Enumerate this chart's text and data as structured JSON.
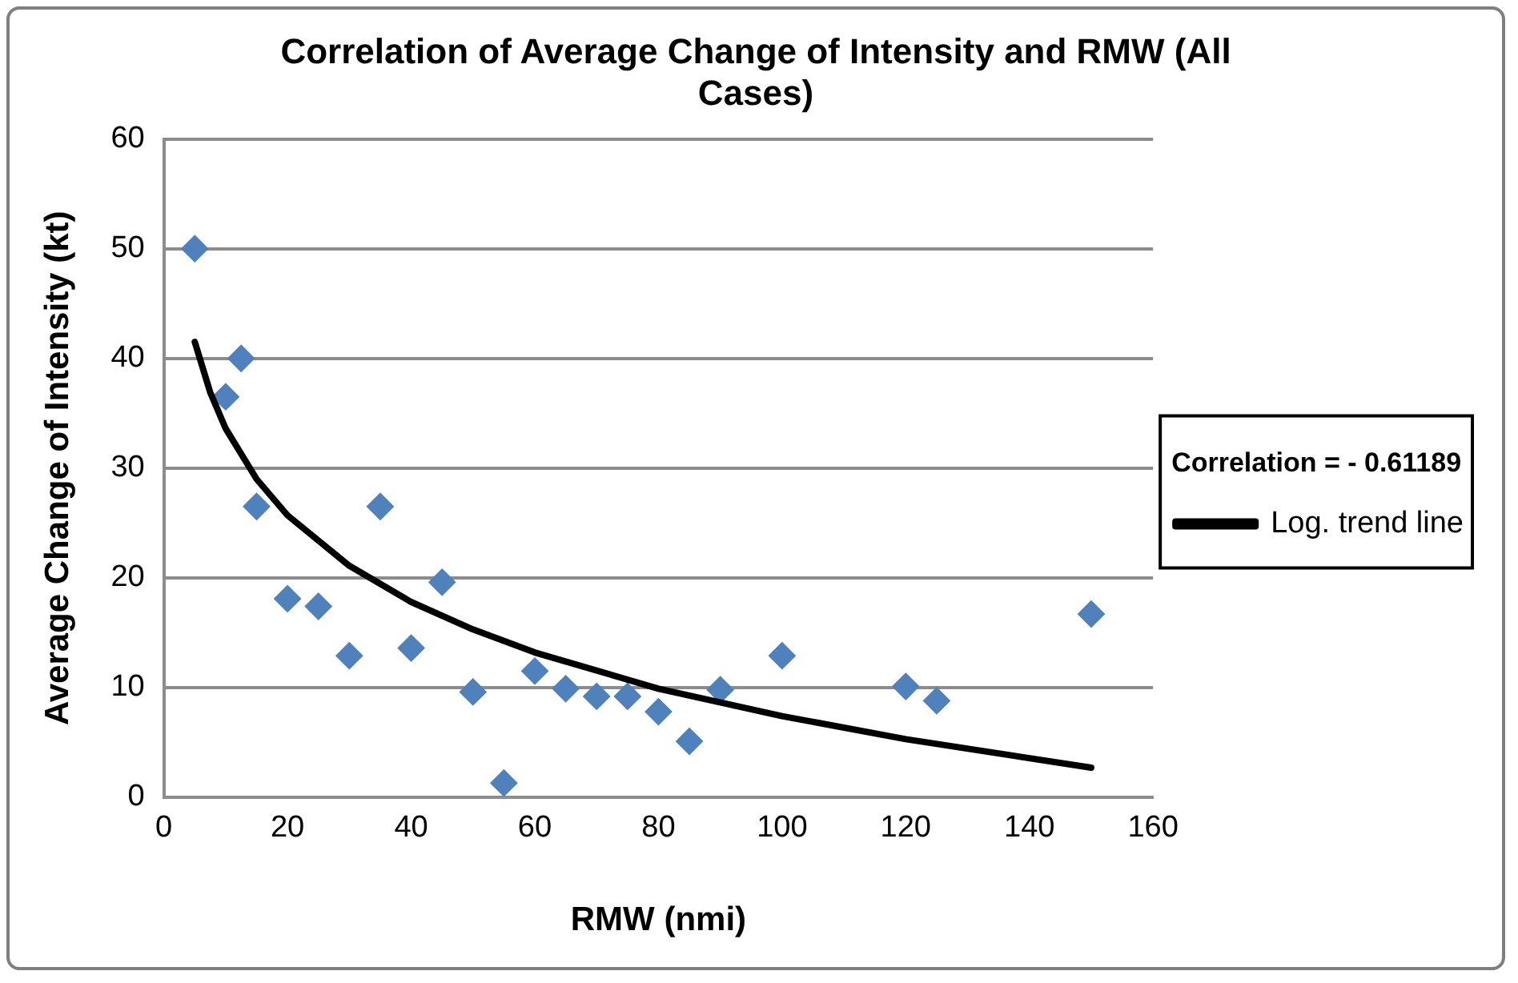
{
  "chart_data": {
    "type": "scatter",
    "title": "Correlation of Average Change of Intensity and RMW (All Cases)",
    "xlabel": "RMW (nmi)",
    "ylabel": "Average Change of Intensity (kt)",
    "legend_title": "Correlation = - 0.61189",
    "legend": "right",
    "grid": "y",
    "xlim": [
      0,
      160
    ],
    "xticks": [
      0,
      20,
      40,
      60,
      80,
      100,
      120,
      140,
      160
    ],
    "ylim": [
      0,
      60
    ],
    "yticks": [
      0,
      10,
      20,
      30,
      40,
      50,
      60
    ],
    "series": [
      {
        "color": "#4f81bd",
        "marker": "diamond",
        "x": [
          5,
          10,
          12.5,
          15,
          20,
          25,
          30,
          35,
          40,
          45,
          50,
          55,
          60,
          65,
          70,
          75,
          80,
          85,
          90,
          100,
          120,
          125,
          150
        ],
        "values": [
          50,
          36.5,
          40,
          26.5,
          18.1,
          17.4,
          12.9,
          26.5,
          13.6,
          19.6,
          9.6,
          1.3,
          11.5,
          9.9,
          9.2,
          9.2,
          7.8,
          5.1,
          9.8,
          12.9,
          10.1,
          8.8,
          16.7
        ]
      },
      {
        "type": "line",
        "name": "Log. trend line",
        "color": "#000000",
        "marker": "none",
        "x": [
          5,
          7.5,
          10,
          15,
          20,
          30,
          40,
          50,
          60,
          80,
          100,
          120,
          150
        ],
        "values": [
          41.5,
          36.9,
          33.6,
          29.0,
          25.7,
          21.1,
          17.8,
          15.3,
          13.2,
          9.9,
          7.4,
          5.3,
          2.7
        ]
      }
    ]
  }
}
